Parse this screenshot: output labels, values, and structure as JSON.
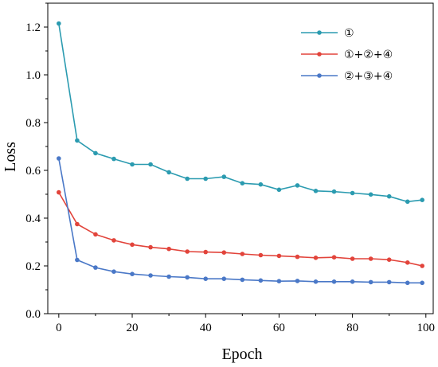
{
  "chart_data": {
    "type": "line",
    "xlabel": "Epoch",
    "ylabel": "Loss",
    "xlim": [
      -3,
      102
    ],
    "ylim": [
      0.0,
      1.3
    ],
    "xticks": [
      "0",
      "20",
      "40",
      "60",
      "80",
      "100"
    ],
    "yticks": [
      "0.0",
      "0.2",
      "0.4",
      "0.6",
      "0.8",
      "1.0",
      "1.2"
    ],
    "grid": false,
    "legend_position": "top-right",
    "x": [
      0,
      5,
      10,
      15,
      20,
      25,
      30,
      35,
      40,
      45,
      50,
      55,
      60,
      65,
      70,
      75,
      80,
      85,
      90,
      95,
      99
    ],
    "series": [
      {
        "name": "①",
        "color": "#2b9bb0",
        "values": [
          1.215,
          0.725,
          0.672,
          0.648,
          0.625,
          0.625,
          0.592,
          0.565,
          0.565,
          0.573,
          0.546,
          0.541,
          0.519,
          0.537,
          0.514,
          0.511,
          0.505,
          0.499,
          0.491,
          0.469,
          0.476
        ]
      },
      {
        "name": "①+②+④",
        "color": "#e2443b",
        "values": [
          0.508,
          0.375,
          0.332,
          0.307,
          0.289,
          0.278,
          0.271,
          0.26,
          0.258,
          0.256,
          0.25,
          0.245,
          0.242,
          0.238,
          0.234,
          0.236,
          0.23,
          0.23,
          0.226,
          0.214,
          0.2
        ]
      },
      {
        "name": "②+③+④",
        "color": "#4a78c7",
        "values": [
          0.65,
          0.225,
          0.193,
          0.176,
          0.166,
          0.16,
          0.155,
          0.152,
          0.146,
          0.146,
          0.142,
          0.139,
          0.136,
          0.137,
          0.134,
          0.134,
          0.134,
          0.132,
          0.132,
          0.129,
          0.129
        ]
      }
    ]
  }
}
